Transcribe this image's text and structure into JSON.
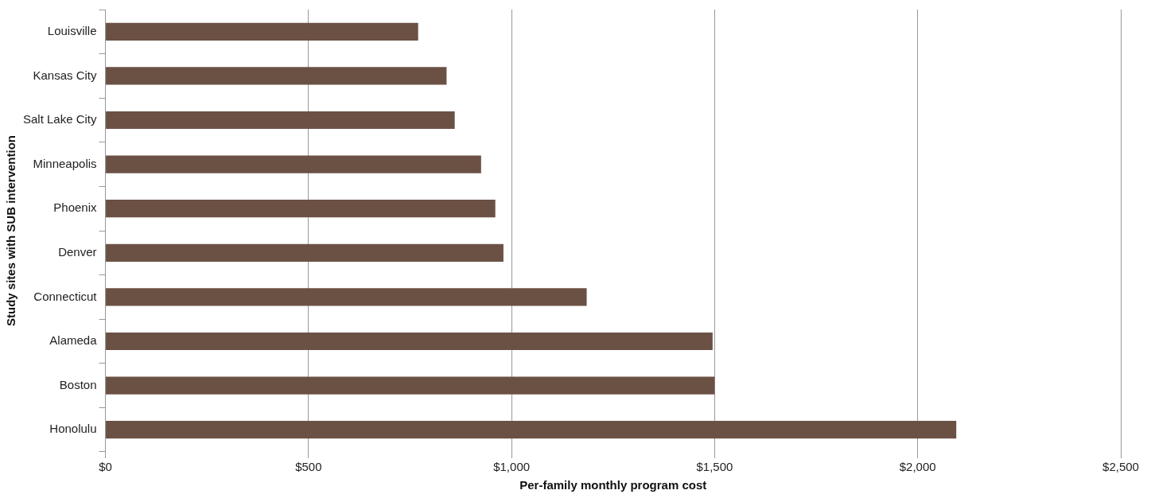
{
  "chart_data": {
    "type": "bar",
    "orientation": "horizontal",
    "xlabel": "Per-family monthly program cost",
    "ylabel": "Study sites with SUB intervention",
    "categories": [
      "Louisville",
      "Kansas City",
      "Salt Lake City",
      "Minneapolis",
      "Phoenix",
      "Denver",
      "Connecticut",
      "Alameda",
      "Boston",
      "Honolulu"
    ],
    "values": [
      770,
      840,
      860,
      925,
      960,
      980,
      1185,
      1495,
      1500,
      2095
    ],
    "color": "#6b5144",
    "xlim": [
      0,
      2500
    ],
    "xticks": [
      {
        "value": 0,
        "label": "$0"
      },
      {
        "value": 500,
        "label": "$500"
      },
      {
        "value": 1000,
        "label": "$1,000"
      },
      {
        "value": 1500,
        "label": "$1,500"
      },
      {
        "value": 2000,
        "label": "$2,000"
      },
      {
        "value": 2500,
        "label": "$2,500"
      }
    ],
    "grid": "x"
  }
}
